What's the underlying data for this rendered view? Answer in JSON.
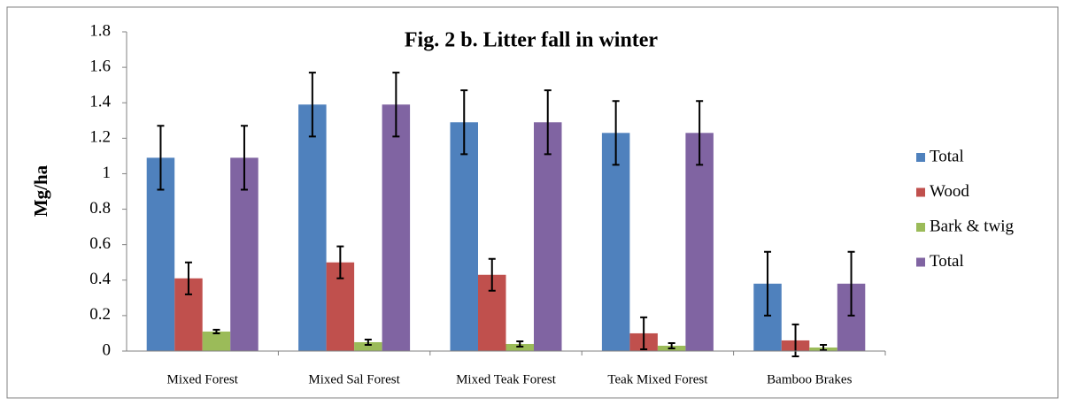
{
  "chart_data": {
    "type": "bar",
    "title": "Fig. 2 b. Litter fall in winter",
    "y_label": "Mg/ha",
    "categories": [
      "Mixed Forest",
      "Mixed Sal Forest",
      "Mixed Teak Forest",
      "Teak Mixed Forest",
      "Bamboo Brakes"
    ],
    "series": [
      {
        "name": "Total",
        "color": "#4f81bd",
        "values": [
          1.09,
          1.39,
          1.29,
          1.23,
          0.38
        ],
        "errors": [
          0.18,
          0.18,
          0.18,
          0.18,
          0.18
        ]
      },
      {
        "name": "Wood",
        "color": "#c0504d",
        "values": [
          0.41,
          0.5,
          0.43,
          0.1,
          0.06
        ],
        "errors": [
          0.09,
          0.09,
          0.09,
          0.09,
          0.09
        ]
      },
      {
        "name": "Bark & twig",
        "color": "#9bbb59",
        "values": [
          0.11,
          0.05,
          0.04,
          0.03,
          0.02
        ],
        "errors": [
          0.01,
          0.015,
          0.015,
          0.015,
          0.015
        ]
      },
      {
        "name": "Total",
        "color": "#8064a2",
        "values": [
          1.09,
          1.39,
          1.29,
          1.23,
          0.38
        ],
        "errors": [
          0.18,
          0.18,
          0.18,
          0.18,
          0.18
        ]
      }
    ],
    "ylim": [
      0,
      1.8
    ],
    "yticks": [
      0,
      0.2,
      0.4,
      0.6,
      0.8,
      1,
      1.2,
      1.4,
      1.6,
      1.8
    ],
    "grid": false,
    "legend": "right"
  }
}
